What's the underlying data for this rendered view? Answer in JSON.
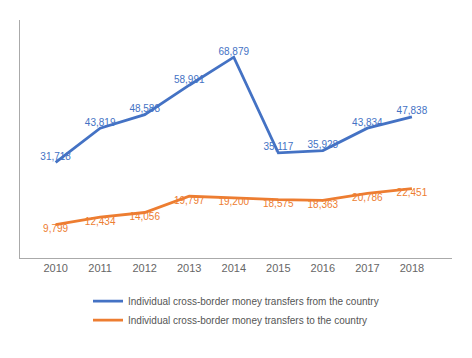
{
  "chart_data": {
    "type": "line",
    "x": [
      2010,
      2011,
      2012,
      2013,
      2014,
      2015,
      2016,
      2017,
      2018
    ],
    "series": [
      {
        "name": "Individual cross-border money transfers from the country",
        "color": "#4472c4",
        "values": [
          31718,
          43819,
          48588,
          58991,
          68879,
          35117,
          35928,
          43834,
          47838
        ],
        "value_labels": [
          "31,718",
          "43,819",
          "48,588",
          "58,991",
          "68,879",
          "35,117",
          "35,928",
          "43,834",
          "47,838"
        ]
      },
      {
        "name": "Individual cross-border money transfers to the country",
        "color": "#ed7d31",
        "values": [
          9799,
          12434,
          14056,
          19797,
          19200,
          18575,
          18363,
          20786,
          22451
        ],
        "value_labels": [
          "9,799",
          "12,434",
          "14,056",
          "19,797",
          "19,200",
          "18,575",
          "18,363",
          "20,786",
          "22,451"
        ]
      }
    ],
    "xlim": [
      2009.2,
      2018.9
    ],
    "xticks": [
      2010,
      2011,
      2012,
      2013,
      2014,
      2015,
      2016,
      2017,
      2018
    ],
    "ylim": [
      -2000,
      82000
    ],
    "tick_labels": "x",
    "data_labels": true,
    "grid": false,
    "legend": "bottom"
  }
}
